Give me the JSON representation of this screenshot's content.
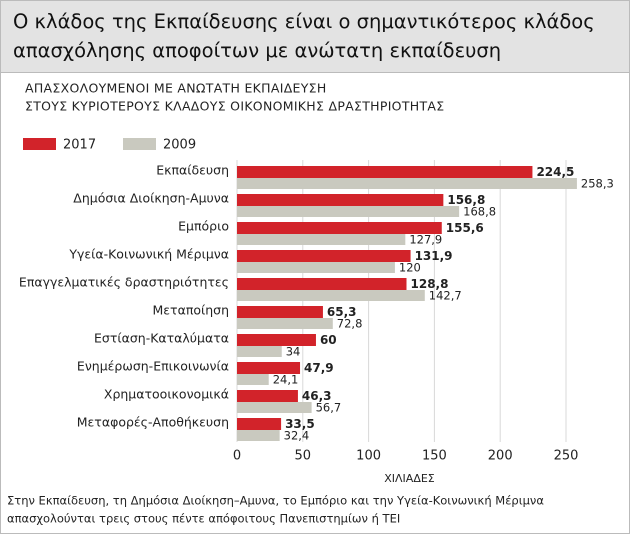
{
  "chart_data": {
    "type": "hbar",
    "title": [
      "Ο κλάδος της Εκπαίδευσης είναι ο σημαντικότερος κλάδος",
      "απασχόλησης αποφοίτων με ανώτατη εκπαίδευση"
    ],
    "subtitle": [
      "ΑΠΑΣΧΟΛΟΥΜΕΝΟΙ ΜΕ ΑΝΩΤΑΤΗ ΕΚΠΑΙΔΕΥΣΗ",
      "ΣΤΟΥΣ ΚΥΡΙΟΤΕΡΟΥΣ ΚΛΑΔΟΥΣ ΟΙΚΟΝΟΜΙΚΗΣ ΔΡΑΣΤΗΡΙΟΤΗΤΑΣ"
    ],
    "categories": [
      "Εκπαίδευση",
      "Δημόσια Διοίκηση-Αμυνα",
      "Εμπόριο",
      "Υγεία-Κοινωνική Μέριμνα",
      "Επαγγελματικές δραστηριότητες",
      "Μεταποίηση",
      "Εστίαση-Καταλύματα",
      "Ενημέρωση-Επικοινωνία",
      "Χρηματοοικονομικά",
      "Μεταφορές-Αποθήκευση"
    ],
    "series": [
      {
        "name": "2017",
        "color": "#d2232a",
        "values": [
          224.5,
          156.8,
          155.6,
          131.9,
          128.8,
          65.3,
          60,
          47.9,
          46.3,
          33.5
        ],
        "value_labels": [
          "224,5",
          "156,8",
          "155,6",
          "131,9",
          "128,8",
          "65,3",
          "60",
          "47,9",
          "46,3",
          "33,5"
        ]
      },
      {
        "name": "2009",
        "color": "#c9c9bf",
        "values": [
          258.3,
          168.8,
          127.9,
          120,
          142.7,
          72.8,
          34,
          24.1,
          56.7,
          32.4
        ],
        "value_labels": [
          "258,3",
          "168,8",
          "127,9",
          "120",
          "142,7",
          "72,8",
          "34",
          "24,1",
          "56,7",
          "32,4"
        ]
      }
    ],
    "xlim": [
      0,
      260
    ],
    "xticks": [
      0,
      50,
      100,
      150,
      200,
      250
    ],
    "grid": true,
    "xlabel": "ΧΙΛΙΑΔΕΣ",
    "note": [
      "Στην Εκπαίδευση, τη Δημόσια Διοίκηση–Αμυνα, το Εμπόριο και την Υγεία-Κοινωνική Μέριμνα",
      "απασχολούνται τρεις στους πέντε απόφοιτους Πανεπιστημίων ή ΤΕΙ"
    ],
    "legend": "top-left"
  }
}
